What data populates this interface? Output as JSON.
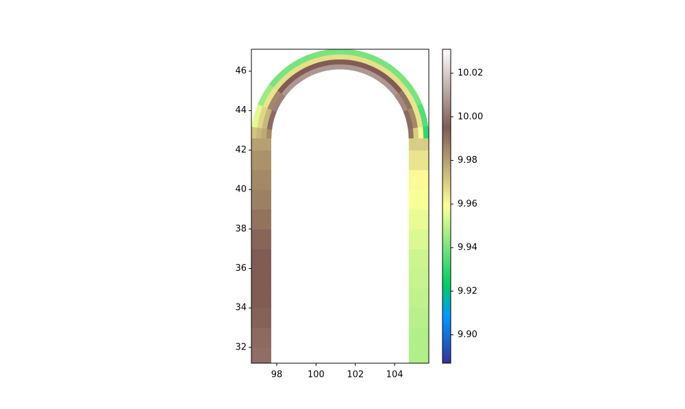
{
  "chart_data": {
    "type": "tricontour",
    "xlim": [
      96.71,
      105.74
    ],
    "ylim": [
      31.2,
      47.11
    ],
    "xticks": [
      98,
      100,
      102,
      104
    ],
    "yticks": [
      32,
      34,
      36,
      38,
      40,
      42,
      44,
      46
    ],
    "clim": [
      9.887,
      10.031
    ],
    "cticks": [
      {
        "value": 9.9,
        "label": "9.90"
      },
      {
        "value": 9.92,
        "label": "9.92"
      },
      {
        "value": 9.94,
        "label": "9.94"
      },
      {
        "value": 9.96,
        "label": "9.96"
      },
      {
        "value": 9.98,
        "label": "9.98"
      },
      {
        "value": 10.0,
        "label": "10.00"
      },
      {
        "value": 10.02,
        "label": "10.02"
      }
    ],
    "colormap": "terrain",
    "colormap_stops": [
      [
        0,
        "#333399"
      ],
      [
        0.15,
        "#0099ff"
      ],
      [
        0.25,
        "#00cc66"
      ],
      [
        0.5,
        "#ffff99"
      ],
      [
        0.75,
        "#805c54"
      ],
      [
        1,
        "#ffffff"
      ]
    ],
    "left_leg": {
      "y": [
        31.5,
        32.5,
        33.5,
        34.5,
        35.5,
        36.5,
        37.5,
        38.5,
        39.5,
        40.5,
        41.5,
        42.5
      ],
      "values": [
        9.999,
        9.998,
        9.996,
        9.995,
        9.995,
        9.995,
        9.993,
        9.99,
        9.987,
        9.985,
        9.983,
        9.98
      ]
    },
    "right_leg": {
      "y": [
        31.5,
        32.5,
        33.5,
        34.5,
        35.5,
        36.5,
        37.5,
        38.5,
        39.5,
        40.5,
        41.5,
        42.5
      ],
      "values": [
        9.948,
        9.948,
        9.949,
        9.95,
        9.951,
        9.952,
        9.954,
        9.956,
        9.958,
        9.96,
        9.965,
        9.97
      ]
    },
    "arc": {
      "angles": [
        180,
        165,
        150,
        135,
        120,
        105,
        90,
        75,
        60,
        45,
        30,
        15,
        0
      ],
      "layers": [
        [
          9.985,
          9.998,
          10.003,
          10.008,
          10.008,
          10.008,
          10.008,
          10.008,
          10.008,
          10.008,
          10.005,
          9.998,
          9.99
        ],
        [
          9.978,
          9.975,
          9.985,
          9.995,
          9.995,
          9.995,
          9.995,
          9.995,
          9.995,
          9.995,
          9.99,
          9.985,
          9.97
        ],
        [
          9.975,
          9.968,
          9.965,
          9.966,
          9.966,
          9.966,
          9.966,
          9.966,
          9.966,
          9.966,
          9.965,
          9.965,
          9.96
        ],
        [
          9.972,
          9.955,
          9.945,
          9.94,
          9.94,
          9.94,
          9.94,
          9.94,
          9.94,
          9.94,
          9.94,
          9.935,
          9.93
        ]
      ]
    }
  }
}
